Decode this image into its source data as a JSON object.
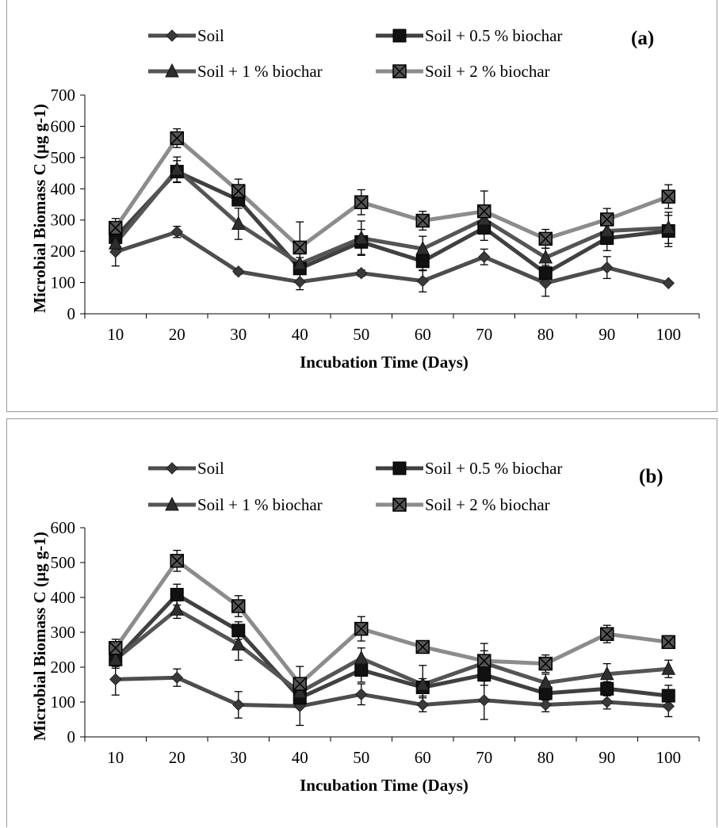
{
  "chart_data": [
    {
      "type": "line",
      "panel_label": "(a)",
      "xlabel": "Incubation Time (Days)",
      "ylabel": "Microbial Biomass C (µg  g-1)",
      "categories": [
        "10",
        "20",
        "30",
        "40",
        "50",
        "60",
        "70",
        "80",
        "90",
        "100"
      ],
      "ylim": [
        0,
        700
      ],
      "yticks": [
        "0",
        "100",
        "200",
        "300",
        "400",
        "500",
        "600",
        "700"
      ],
      "legend_position": "top",
      "series": [
        {
          "name": "Soil",
          "marker": "diamond",
          "color": "#4d4d4d",
          "values": [
            198,
            262,
            135,
            102,
            130,
            105,
            182,
            98,
            148,
            98
          ],
          "errors": [
            45,
            18,
            8,
            25,
            10,
            35,
            25,
            42,
            35,
            5
          ]
        },
        {
          "name": "Soil + 0.5 % biochar",
          "marker": "square",
          "color": "#404040",
          "values": [
            245,
            455,
            365,
            145,
            230,
            168,
            275,
            130,
            242,
            265
          ],
          "errors": [
            30,
            35,
            20,
            15,
            40,
            30,
            40,
            25,
            40,
            50
          ]
        },
        {
          "name": "Soil + 1 % biochar",
          "marker": "triangle",
          "color": "#555555",
          "values": [
            225,
            462,
            288,
            160,
            242,
            208,
            302,
            180,
            265,
            275
          ],
          "errors": [
            20,
            40,
            50,
            20,
            55,
            40,
            45,
            30,
            40,
            50
          ]
        },
        {
          "name": "Soil + 2 % biochar",
          "marker": "boxx",
          "color": "#8c8c8c",
          "values": [
            275,
            562,
            393,
            212,
            357,
            298,
            328,
            240,
            302,
            375
          ],
          "errors": [
            30,
            30,
            38,
            82,
            40,
            30,
            65,
            30,
            35,
            38
          ]
        }
      ]
    },
    {
      "type": "line",
      "panel_label": "(b)",
      "xlabel": "Incubation Time (Days)",
      "ylabel": "Microbial Biomass C (µg  g-1)",
      "categories": [
        "10",
        "20",
        "30",
        "40",
        "50",
        "60",
        "70",
        "80",
        "90",
        "100"
      ],
      "ylim": [
        0,
        600
      ],
      "yticks": [
        "0",
        "100",
        "200",
        "300",
        "400",
        "500",
        "600"
      ],
      "legend_position": "top",
      "series": [
        {
          "name": "Soil",
          "marker": "diamond",
          "color": "#4d4d4d",
          "values": [
            165,
            170,
            92,
            88,
            122,
            92,
            105,
            92,
            100,
            88
          ],
          "errors": [
            45,
            25,
            38,
            55,
            30,
            20,
            55,
            20,
            20,
            30
          ]
        },
        {
          "name": "Soil + 0.5 % biochar",
          "marker": "square",
          "color": "#404040",
          "values": [
            222,
            408,
            305,
            112,
            192,
            142,
            178,
            125,
            138,
            118
          ],
          "errors": [
            25,
            30,
            25,
            20,
            35,
            25,
            30,
            20,
            20,
            30
          ]
        },
        {
          "name": "Soil + 1 % biochar",
          "marker": "triangle",
          "color": "#555555",
          "values": [
            222,
            365,
            265,
            128,
            225,
            150,
            212,
            155,
            180,
            195
          ],
          "errors": [
            20,
            25,
            45,
            20,
            30,
            55,
            35,
            25,
            30,
            25
          ]
        },
        {
          "name": "Soil + 2 % biochar",
          "marker": "boxx",
          "color": "#8c8c8c",
          "values": [
            255,
            505,
            375,
            152,
            310,
            258,
            218,
            210,
            295,
            272
          ],
          "errors": [
            25,
            30,
            30,
            50,
            35,
            15,
            50,
            25,
            25,
            18
          ]
        }
      ]
    }
  ]
}
